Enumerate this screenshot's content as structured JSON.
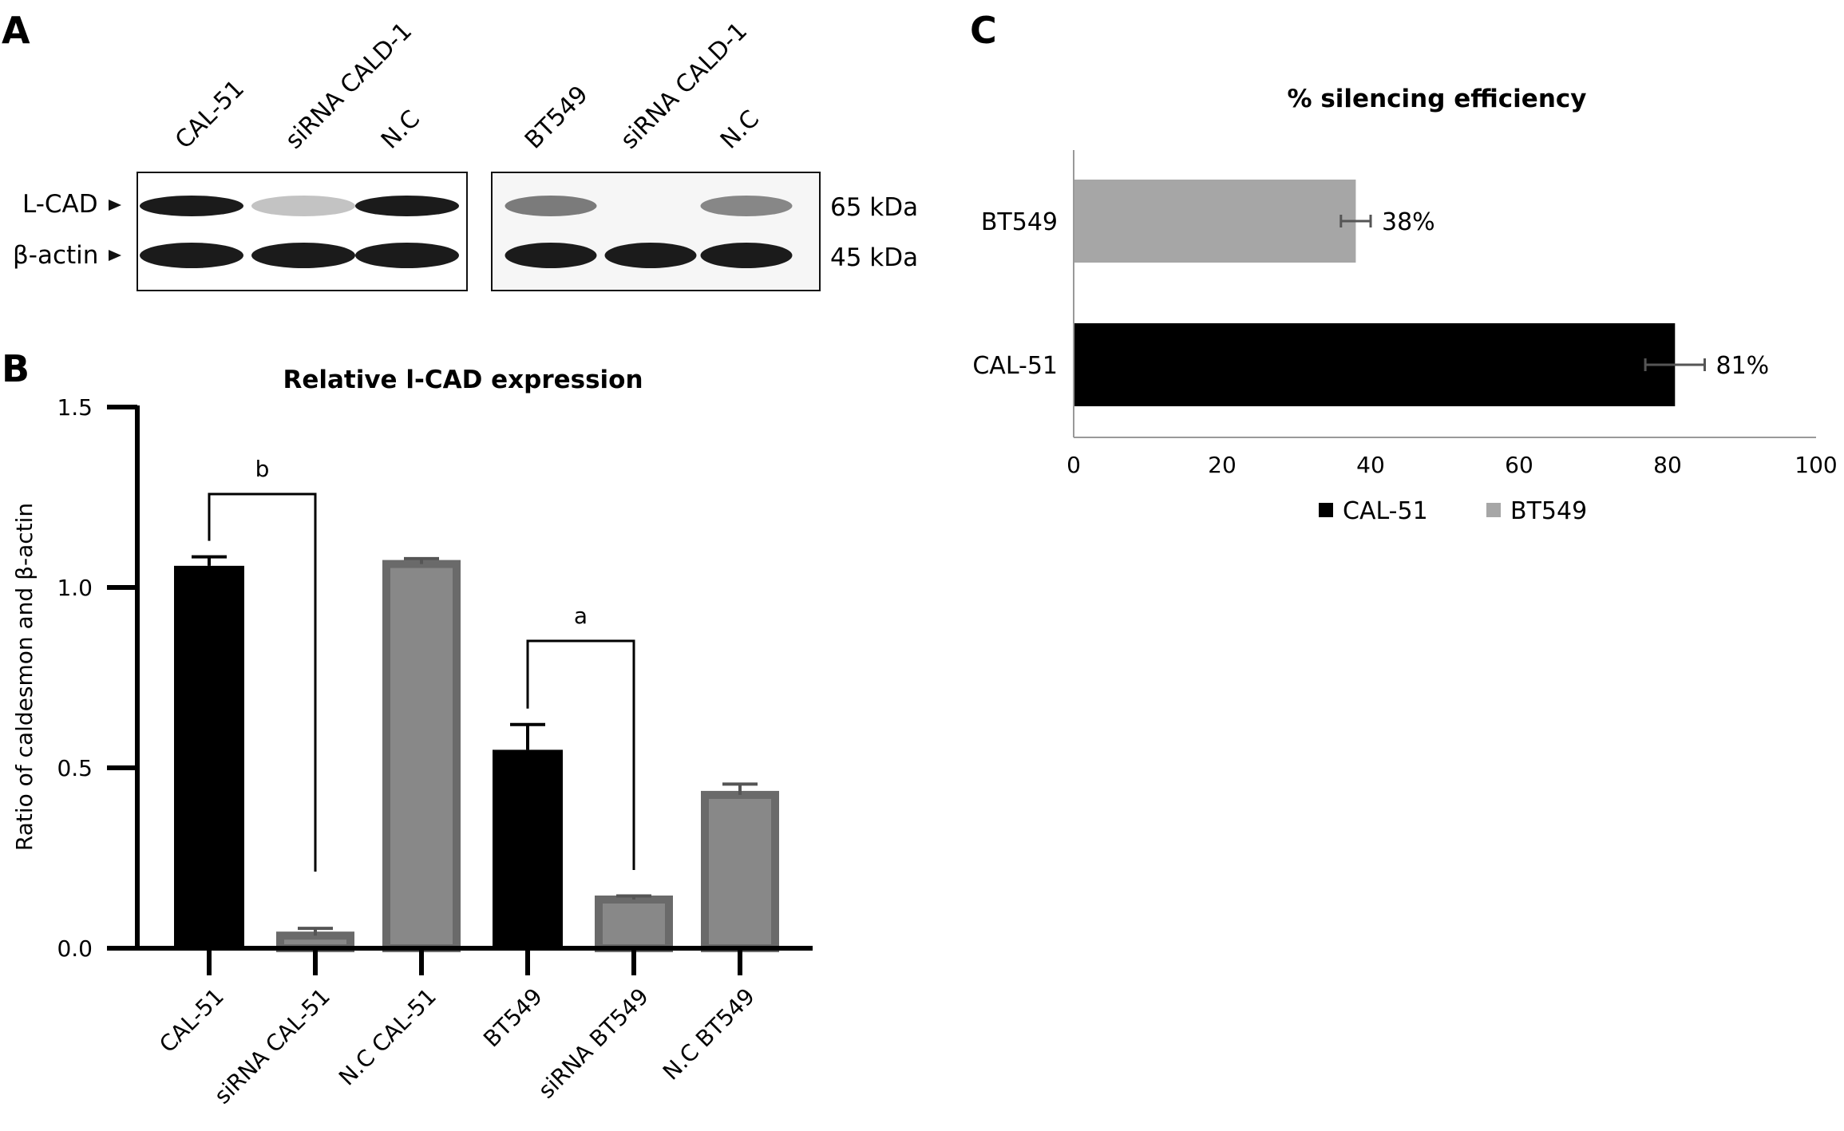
{
  "panels": {
    "a": {
      "letter": "A",
      "blot1_lanes": [
        "CAL-51",
        "siRNA CALD-1",
        "N.C"
      ],
      "blot2_lanes": [
        "BT549",
        "siRNA CALD-1",
        "N.C"
      ],
      "rows": [
        {
          "label": "L-CAD",
          "size": "65 kDa"
        },
        {
          "label": "β-actin",
          "size": "45 kDa"
        }
      ],
      "blot1_band_intensity": {
        "lcad": [
          0.95,
          0.25,
          0.95
        ],
        "actin": [
          0.95,
          0.95,
          0.95
        ]
      },
      "blot2_band_intensity": {
        "lcad": [
          0.55,
          0.0,
          0.5
        ],
        "actin": [
          0.95,
          0.95,
          0.95
        ]
      }
    },
    "b": {
      "letter": "B"
    },
    "c": {
      "letter": "C"
    }
  },
  "chart_data": [
    {
      "type": "bar",
      "title": "Relative l-CAD expression",
      "ylabel": "Ratio of caldesmon and β-actin",
      "xlabel": "",
      "ylim": [
        0,
        1.5
      ],
      "yticks": [
        "0.0",
        "0.5",
        "1.0",
        "1.5"
      ],
      "categories": [
        "CAL-51",
        "siRNA CAL-51",
        "N.C CAL-51",
        "BT549",
        "siRNA BT549",
        "N.C BT549"
      ],
      "values": [
        1.06,
        0.035,
        1.065,
        0.55,
        0.135,
        0.425
      ],
      "errors": [
        0.025,
        0.02,
        0.015,
        0.07,
        0.01,
        0.03
      ],
      "colors": [
        "#000000",
        "#7f7f7f",
        "#7f7f7f",
        "#000000",
        "#7f7f7f",
        "#7f7f7f"
      ],
      "annotations": [
        {
          "label": "b",
          "from": 0,
          "to": 1
        },
        {
          "label": "a",
          "from": 3,
          "to": 4
        }
      ],
      "grid": false
    },
    {
      "type": "bar",
      "orientation": "horizontal",
      "title": "% silencing efficiency",
      "xlabel": "",
      "ylabel": "",
      "xlim": [
        0,
        100
      ],
      "xticks": [
        "0",
        "20",
        "40",
        "60",
        "80",
        "100"
      ],
      "categories": [
        "BT549",
        "CAL-51"
      ],
      "values": [
        38,
        81
      ],
      "errors": [
        2,
        4
      ],
      "value_labels": [
        "38%",
        "81%"
      ],
      "colors": [
        "#a6a6a6",
        "#000000"
      ],
      "legend": {
        "position": "bottom",
        "entries": [
          {
            "name": "CAL-51",
            "color": "#000000"
          },
          {
            "name": "BT549",
            "color": "#a6a6a6"
          }
        ]
      },
      "grid": false
    }
  ]
}
